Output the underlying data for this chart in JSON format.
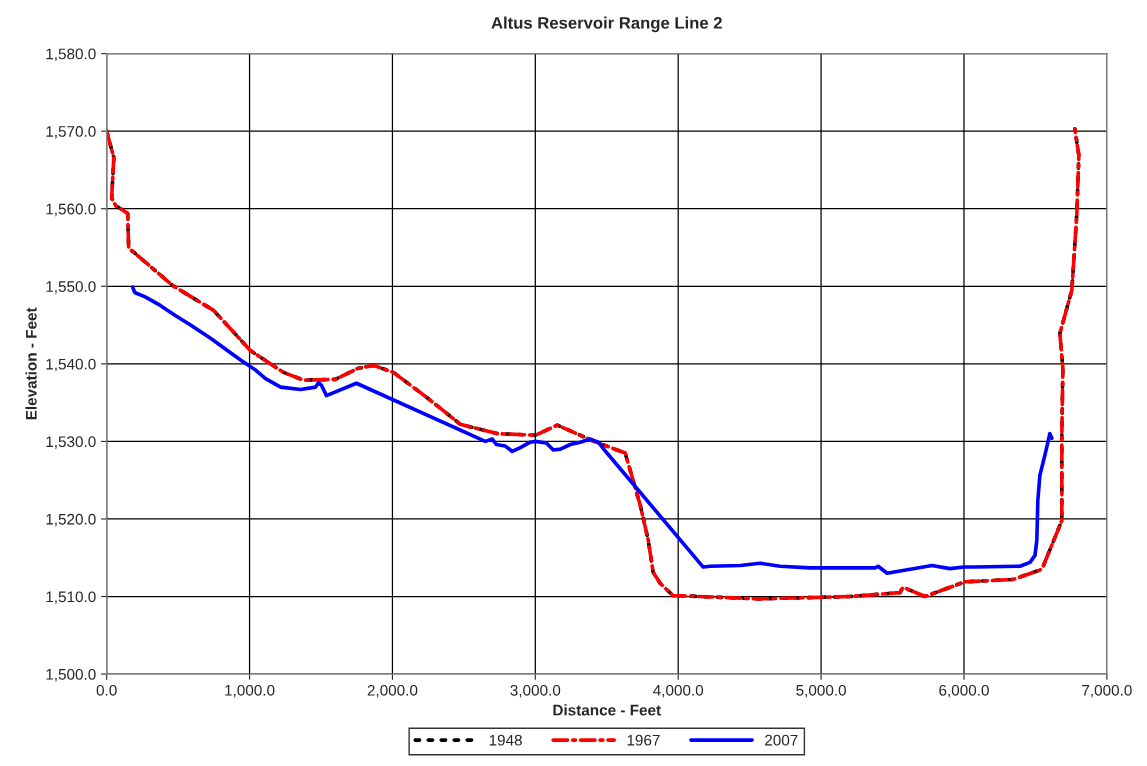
{
  "chart_data": {
    "type": "line",
    "title": "Altus Reservoir Range Line 2",
    "xlabel": "Distance - Feet",
    "ylabel": "Elevation - Feet",
    "xlim": [
      0,
      7000
    ],
    "ylim": [
      1500,
      1580
    ],
    "xticks": [
      {
        "value": 0,
        "label": "0.0"
      },
      {
        "value": 1000,
        "label": "1,000.0"
      },
      {
        "value": 2000,
        "label": "2,000.0"
      },
      {
        "value": 3000,
        "label": "3,000.0"
      },
      {
        "value": 4000,
        "label": "4,000.0"
      },
      {
        "value": 5000,
        "label": "5,000.0"
      },
      {
        "value": 6000,
        "label": "6,000.0"
      },
      {
        "value": 7000,
        "label": "7,000.0"
      }
    ],
    "yticks": [
      {
        "value": 1500,
        "label": "1,500.0"
      },
      {
        "value": 1510,
        "label": "1,510.0"
      },
      {
        "value": 1520,
        "label": "1,520.0"
      },
      {
        "value": 1530,
        "label": "1,530.0"
      },
      {
        "value": 1540,
        "label": "1,540.0"
      },
      {
        "value": 1550,
        "label": "1,550.0"
      },
      {
        "value": 1560,
        "label": "1,560.0"
      },
      {
        "value": 1570,
        "label": "1,570.0"
      },
      {
        "value": 1580,
        "label": "1,580.0"
      }
    ],
    "grid": true,
    "legend": "bottom",
    "series": [
      {
        "name": "1948",
        "color": "#000000",
        "line_style": "dotted",
        "x": [
          0,
          50,
          35,
          63,
          147,
          154,
          189,
          462,
          748,
          1007,
          1238,
          1378,
          1601,
          1755,
          1867,
          2007,
          2245,
          2476,
          2734,
          3000,
          3154,
          3398,
          3629,
          3734,
          3790,
          3825,
          3874,
          3965,
          4014,
          4573,
          5203,
          5552,
          5573,
          5727,
          6007,
          6343,
          6531,
          6552,
          6685,
          6685,
          6685,
          6692,
          6671,
          6755,
          6790,
          6804,
          6776
        ],
        "values": [
          1570,
          1566.6,
          1561.4,
          1560.4,
          1559.4,
          1554.9,
          1554.4,
          1550.1,
          1546.9,
          1541.7,
          1538.9,
          1537.9,
          1538.0,
          1539.4,
          1539.8,
          1538.9,
          1535.6,
          1532.2,
          1531.0,
          1530.8,
          1532.1,
          1530.1,
          1528.5,
          1521.8,
          1517.3,
          1513.1,
          1511.7,
          1510.1,
          1510.1,
          1509.7,
          1510.0,
          1510.5,
          1511.2,
          1510.0,
          1511.9,
          1512.2,
          1513.4,
          1513.8,
          1519.8,
          1521.1,
          1531.0,
          1539.5,
          1543.9,
          1549.5,
          1559.4,
          1566.9,
          1570.3
        ]
      },
      {
        "name": "1967",
        "color": "#ff0000",
        "line_style": "dashdot",
        "x": [
          0,
          50,
          35,
          63,
          147,
          154,
          189,
          462,
          748,
          1007,
          1238,
          1378,
          1601,
          1755,
          1867,
          2007,
          2245,
          2476,
          2734,
          3000,
          3154,
          3398,
          3629,
          3734,
          3790,
          3825,
          3874,
          3965,
          4014,
          4573,
          5203,
          5552,
          5573,
          5727,
          6007,
          6343,
          6531,
          6552,
          6685,
          6685,
          6685,
          6692,
          6671,
          6755,
          6790,
          6804,
          6776
        ],
        "values": [
          1570,
          1566.6,
          1561.4,
          1560.4,
          1559.4,
          1554.9,
          1554.4,
          1550.1,
          1546.9,
          1541.7,
          1538.9,
          1537.9,
          1538.0,
          1539.4,
          1539.8,
          1538.9,
          1535.6,
          1532.2,
          1531.0,
          1530.8,
          1532.1,
          1530.1,
          1528.5,
          1521.8,
          1517.3,
          1513.1,
          1511.7,
          1510.1,
          1510.1,
          1509.7,
          1510.0,
          1510.5,
          1511.2,
          1510.0,
          1511.9,
          1512.2,
          1513.4,
          1513.8,
          1519.8,
          1521.1,
          1531.0,
          1539.5,
          1543.9,
          1549.5,
          1559.4,
          1566.9,
          1570.3
        ]
      },
      {
        "name": "2007",
        "color": "#0000ff",
        "line_style": "solid",
        "x": [
          182,
          196,
          273,
          378,
          483,
          587,
          727,
          937,
          1042,
          1112,
          1217,
          1357,
          1462,
          1483,
          1504,
          1538,
          1748,
          2650,
          2699,
          2727,
          2790,
          2839,
          2895,
          2965,
          3000,
          3077,
          3126,
          3175,
          3245,
          3315,
          3385,
          3441,
          3497,
          4175,
          4224,
          4434,
          4573,
          4713,
          4923,
          5378,
          5399,
          5462,
          5776,
          5902,
          5999,
          6077,
          6392,
          6462,
          6497,
          6510,
          6517,
          6531,
          6566,
          6601,
          6615
        ],
        "values": [
          1549.9,
          1549.2,
          1548.6,
          1547.5,
          1546.2,
          1545.0,
          1543.3,
          1540.5,
          1539.2,
          1538.1,
          1537.0,
          1536.7,
          1537.0,
          1537.6,
          1537.2,
          1535.9,
          1537.5,
          1530.0,
          1530.3,
          1529.6,
          1529.4,
          1528.7,
          1529.2,
          1529.9,
          1530.0,
          1529.8,
          1528.9,
          1529.0,
          1529.6,
          1529.9,
          1530.3,
          1529.9,
          1528.6,
          1513.8,
          1513.9,
          1514.0,
          1514.3,
          1513.9,
          1513.7,
          1513.7,
          1513.9,
          1513.0,
          1514.0,
          1513.6,
          1513.8,
          1513.8,
          1513.9,
          1514.4,
          1515.3,
          1517.3,
          1522.4,
          1525.6,
          1528.2,
          1531.0,
          1530.4
        ]
      }
    ]
  }
}
